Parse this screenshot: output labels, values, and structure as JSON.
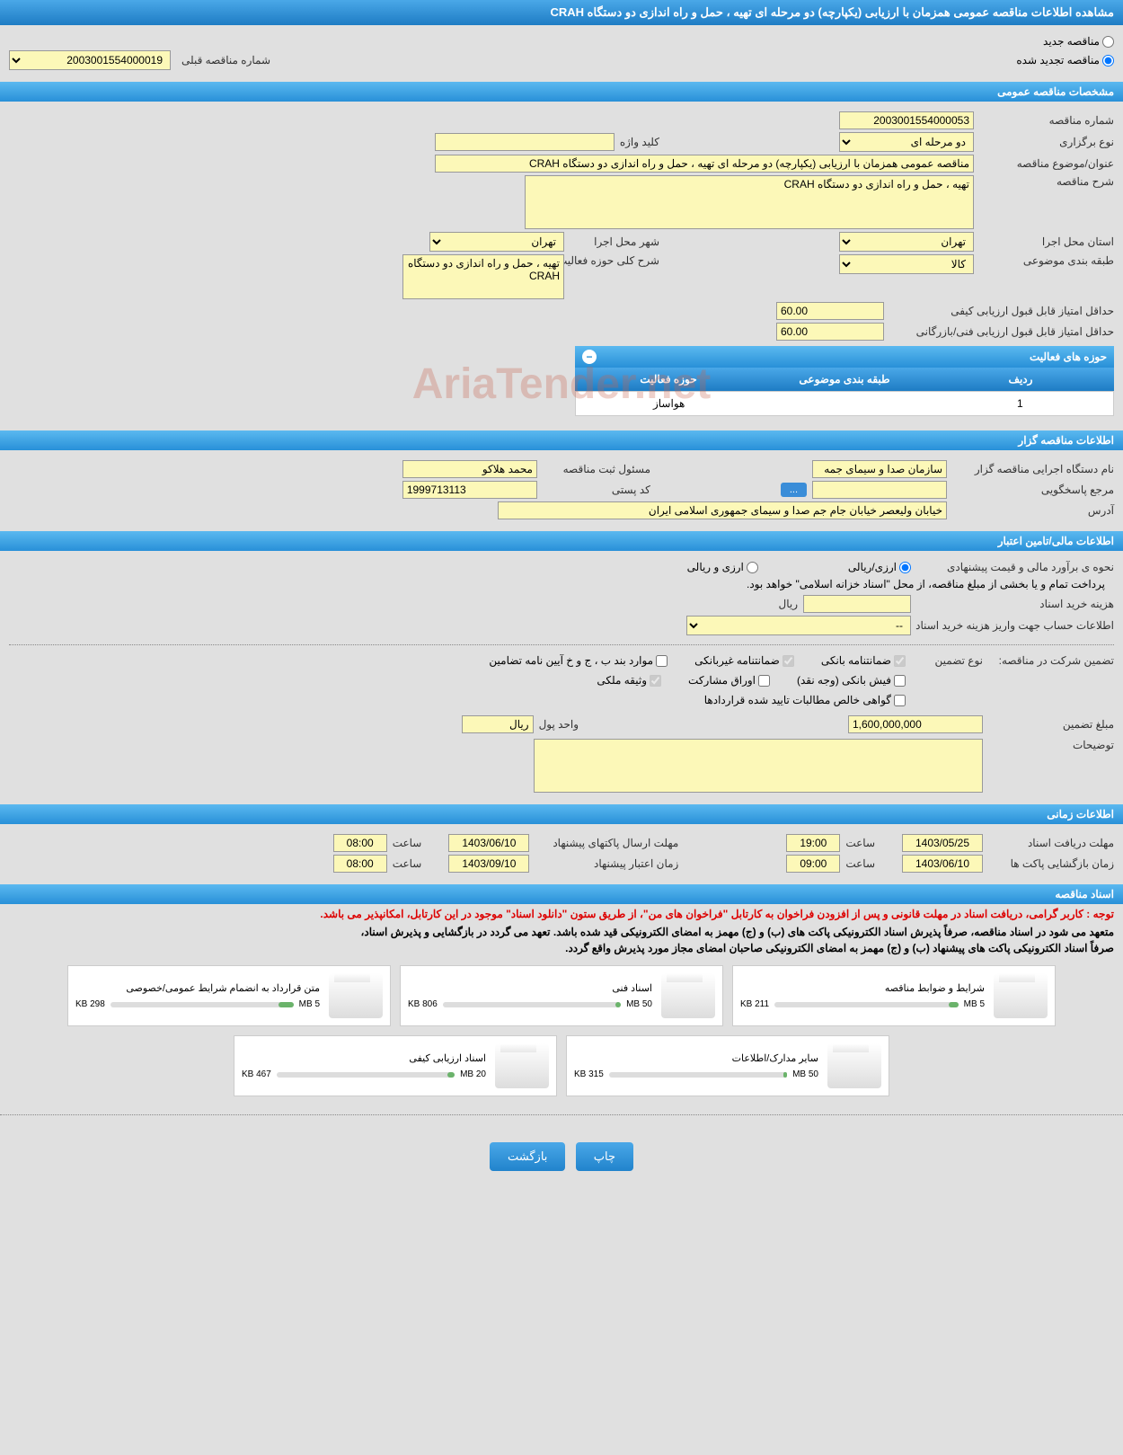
{
  "page_title": "مشاهده اطلاعات مناقصه عمومی همزمان با ارزیابی (یکپارچه) دو مرحله ای تهیه ، حمل و راه اندازی دو دستگاه CRAH",
  "top": {
    "new_tender_label": "مناقصه جدید",
    "renewed_tender_label": "مناقصه تجدید شده",
    "prev_tender_label": "شماره مناقصه قبلی",
    "prev_tender_value": "2003001554000019"
  },
  "sections": {
    "general": "مشخصات مناقصه عمومی",
    "holder": "اطلاعات مناقصه گزار",
    "financial": "اطلاعات مالی/تامین اعتبار",
    "timing": "اطلاعات زمانی",
    "docs": "اسناد مناقصه"
  },
  "general": {
    "tender_no_label": "شماره مناقصه",
    "tender_no": "2003001554000053",
    "type_label": "نوع برگزاری",
    "type_value": "دو مرحله ای",
    "keyword_label": "کلید واژه",
    "keyword_value": "",
    "title_label": "عنوان/موضوع مناقصه",
    "title_value": "مناقصه عمومی همزمان با ارزیابی (یکپارچه) دو مرحله ای تهیه ، حمل و راه اندازی دو دستگاه CRAH",
    "desc_label": "شرح مناقصه",
    "desc_value": "تهیه ، حمل و راه اندازی دو دستگاه CRAH",
    "province_label": "استان محل اجرا",
    "province_value": "تهران",
    "city_label": "شهر محل اجرا",
    "city_value": "تهران",
    "subject_class_label": "طبقه بندی موضوعی",
    "subject_class_value": "کالا",
    "activity_desc_label": "شرح کلی حوزه فعالیت",
    "activity_desc_value": "تهیه ، حمل و راه اندازی دو دستگاه CRAH",
    "min_quality_label": "حداقل امتیاز قابل قبول ارزیابی کیفی",
    "min_quality_value": "60.00",
    "min_tech_label": "حداقل امتیاز قابل قبول ارزیابی فنی/بازرگانی",
    "min_tech_value": "60.00"
  },
  "activity_table": {
    "title": "حوزه های فعالیت",
    "col_row": "ردیف",
    "col_subject": "طبقه بندی موضوعی",
    "col_activity": "حوزه فعالیت",
    "rows": [
      {
        "row": "1",
        "subject": "",
        "activity": "هواساز"
      }
    ]
  },
  "holder": {
    "org_label": "نام دستگاه اجرایی مناقصه گزار",
    "org_value": "سازمان صدا و سیمای جمه",
    "registrar_label": "مسئول ثبت مناقصه",
    "registrar_value": "محمد هلاکو",
    "response_ref_label": "مرجع پاسخگویی",
    "response_ref_value": "",
    "postal_label": "کد پستی",
    "postal_value": "1999713113",
    "address_label": "آدرس",
    "address_value": "خیابان ولیعصر خیابان جام جم صدا و سیمای جمهوری اسلامی ایران",
    "more_btn": "..."
  },
  "financial": {
    "estimate_method_label": "نحوه ی برآورد مالی و قیمت پیشنهادی",
    "opt_rial": "ارزی/ریالی",
    "opt_both": "ارزی و ریالی",
    "payment_note": "پرداخت تمام و یا بخشی از مبلغ مناقصه، از محل \"اسناد خزانه اسلامی\" خواهد بود.",
    "doc_cost_label": "هزینه خرید اسناد",
    "doc_cost_value": "",
    "doc_cost_unit": "ریال",
    "account_info_label": "اطلاعات حساب جهت واریز هزینه خرید اسناد",
    "account_info_value": "--",
    "guarantee_label": "تضمین شرکت در مناقصه:",
    "guarantee_type_label": "نوع تضمین",
    "chk_bank": "ضمانتنامه بانکی",
    "chk_nonbank": "ضمانتنامه غیربانکی",
    "chk_bonds": "موارد بند ب ، ج و خ آیین نامه تضامین",
    "chk_cash": "فیش بانکی (وجه نقد)",
    "chk_shares": "اوراق مشارکت",
    "chk_property": "وثیقه ملکی",
    "chk_claims": "گواهی خالص مطالبات تایید شده قراردادها",
    "amount_label": "مبلغ تضمین",
    "amount_value": "1,600,000,000",
    "currency_label": "واحد پول",
    "currency_value": "ریال",
    "notes_label": "توضیحات",
    "notes_value": ""
  },
  "timing": {
    "doc_deadline_label": "مهلت دریافت اسناد",
    "doc_deadline_date": "1403/05/25",
    "doc_deadline_time": "19:00",
    "envelope_deadline_label": "مهلت ارسال پاکتهای پیشنهاد",
    "envelope_deadline_date": "1403/06/10",
    "envelope_deadline_time": "08:00",
    "opening_label": "زمان بازگشایی پاکت ها",
    "opening_date": "1403/06/10",
    "opening_time": "09:00",
    "validity_label": "زمان اعتبار پیشنهاد",
    "validity_date": "1403/09/10",
    "validity_time": "08:00",
    "time_label": "ساعت"
  },
  "docs": {
    "note_red": "توجه : کاربر گرامی، دریافت اسناد در مهلت قانونی و پس از افزودن فراخوان به کارتابل \"فراخوان های من\"، از طریق ستون \"دانلود اسناد\" موجود در این کارتابل، امکانپذیر می باشد.",
    "note1": "متعهد می شود در اسناد مناقصه، صرفاً پذیرش اسناد الکترونیکی پاکت های (ب) و (ج) مهمز به امضای الکترونیکی قید شده باشد. تعهد می گردد در بازگشایی و پذیرش اسناد،",
    "note2": "صرفاً اسناد الکترونیکی پاکت های پیشنهاد (ب) و (ج) مهمز به امضای الکترونیکی صاحبان امضای مجاز مورد پذیرش واقع گردد.",
    "files": [
      {
        "title": "شرایط و ضوابط مناقصه",
        "size": "211 KB",
        "max": "5 MB",
        "fill": 5
      },
      {
        "title": "اسناد فنی",
        "size": "806 KB",
        "max": "50 MB",
        "fill": 3
      },
      {
        "title": "متن قرارداد به انضمام شرایط عمومی/خصوصی",
        "size": "298 KB",
        "max": "5 MB",
        "fill": 8
      },
      {
        "title": "سایر مدارک/اطلاعات",
        "size": "315 KB",
        "max": "50 MB",
        "fill": 2
      },
      {
        "title": "اسناد ارزیابی کیفی",
        "size": "467 KB",
        "max": "20 MB",
        "fill": 4
      }
    ]
  },
  "buttons": {
    "print": "چاپ",
    "back": "بازگشت"
  },
  "watermark": "AriaTender.net"
}
